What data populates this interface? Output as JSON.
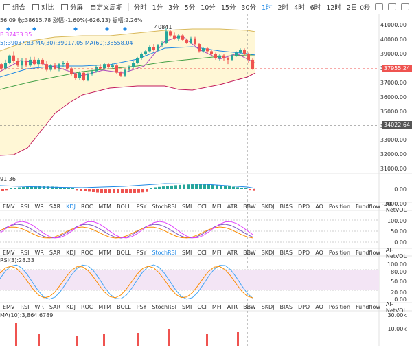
{
  "toolbar": {
    "group_label": "组合",
    "compare_label": "对比",
    "split_label": "分屏",
    "custom_period_label": "自定义周期",
    "timeframes": [
      "分时",
      "1分",
      "3分",
      "5分",
      "10分",
      "15分",
      "30分",
      "1时",
      "2时",
      "4时",
      "6时",
      "12时",
      "2日"
    ],
    "active_timeframe": "1时",
    "zoom_label": "0秒"
  },
  "main_chart": {
    "info_line": "56.09  收:38615.78  涨幅:-1.60%(-626.13)  振幅:2.26%",
    "boll_line": "B:37433.35",
    "ma_line": "5):39037.83  MA(30):39017.05  MA(60):38558.04",
    "high_marker": "40841",
    "y_axis": [
      "41000.00",
      "40000.00",
      "39000.00",
      "38000.00",
      "37000.00",
      "36000.00",
      "35000.00",
      "34000.00",
      "33000.00",
      "32000.00",
      "31000.00"
    ],
    "current_price": "37955.24",
    "crosshair_price": "34022.64"
  },
  "macd_panel": {
    "label": "91.36",
    "y_axis": [
      "0.00",
      "-2000.00"
    ]
  },
  "indicator_tabs": [
    "EMV",
    "RSI",
    "WR",
    "SAR",
    "KDJ",
    "ROC",
    "MTM",
    "BOLL",
    "PSY",
    "StochRSI",
    "SMI",
    "CCI",
    "MFI",
    "ATR",
    "BBW",
    "SKDJ",
    "BIAS",
    "DPO",
    "AO",
    "Position",
    "Fundflow",
    "AI-NetVOL"
  ],
  "kdj_panel": {
    "y_axis": [
      "100.00",
      "50.00",
      "0.00"
    ],
    "active_tab": "KDJ"
  },
  "stochrsi_panel": {
    "label": "RSI(3):28.33",
    "y_axis": [
      "100.00",
      "80.00",
      "50.00",
      "20.00",
      "0.00"
    ],
    "active_tab": "StochRSI"
  },
  "volume_panel": {
    "label": "MA(10):3,864.6789",
    "y_axis": [
      "30.00k",
      "10.00k"
    ]
  },
  "colors": {
    "up": "#26a69a",
    "down": "#ef5350",
    "accent": "#1e88e5",
    "boll_fill": "#fff7d6"
  }
}
